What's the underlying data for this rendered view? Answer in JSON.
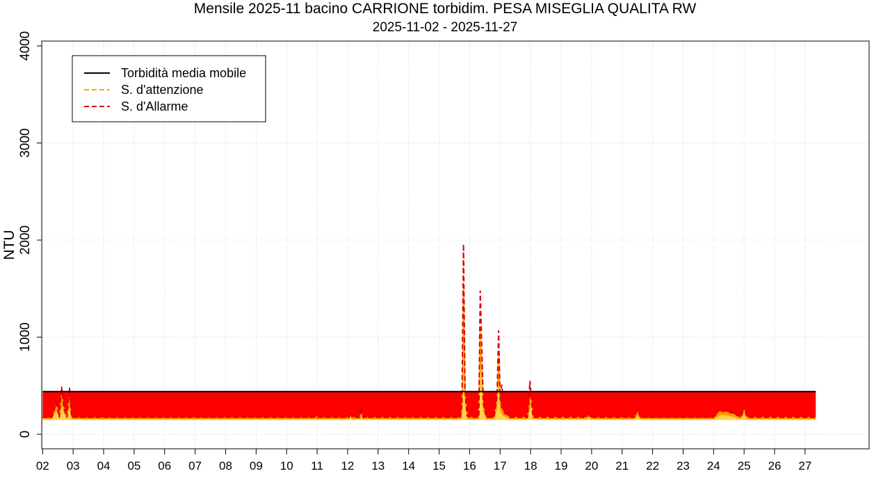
{
  "chart_data": {
    "type": "area",
    "title": "Mensile 2025-11 bacino CARRIONE torbidim. PESA MISEGLIA QUALITA RW",
    "subtitle": "2025-11-02 - 2025-11-27",
    "xlabel": "",
    "ylabel": "NTU",
    "x_ticks": [
      "02",
      "03",
      "04",
      "05",
      "06",
      "07",
      "08",
      "09",
      "10",
      "11",
      "12",
      "13",
      "14",
      "15",
      "16",
      "17",
      "18",
      "19",
      "20",
      "21",
      "22",
      "23",
      "24",
      "25",
      "26",
      "27"
    ],
    "xlim": [
      1.97,
      29.1
    ],
    "ylim": [
      -150,
      4050
    ],
    "y_ticks": [
      0,
      1000,
      2000,
      3000,
      4000
    ],
    "grid": true,
    "legend_position": "top-left",
    "colors": {
      "media_mobile": "#000000",
      "attenzione": "#FFA500",
      "allarme": "#DD0000",
      "fill_red": "#FF0000",
      "fill_orange": "#FF9900",
      "fill_yellow": "#FFD34D"
    },
    "series": [
      {
        "name": "Torbidità media mobile",
        "style": "solid",
        "x": [
          2.0,
          27.35
        ],
        "y": [
          440,
          440
        ]
      },
      {
        "name": "S. d'attenzione",
        "style": "dashed",
        "x": [
          2.0,
          2.3,
          2.45,
          2.55,
          2.62,
          2.7,
          2.8,
          2.88,
          2.95,
          3.1,
          10.9,
          11.0,
          11.1,
          12.05,
          12.1,
          12.15,
          12.4,
          12.45,
          12.5,
          15.7,
          15.75,
          15.8,
          15.85,
          15.92,
          16.0,
          16.3,
          16.35,
          16.4,
          16.45,
          16.55,
          16.8,
          16.9,
          16.95,
          17.0,
          17.1,
          17.3,
          17.9,
          18.0,
          18.08,
          19.85,
          19.9,
          19.95,
          21.4,
          21.5,
          21.6,
          24.0,
          24.2,
          24.5,
          24.9,
          25.0,
          25.1,
          27.35
        ],
        "y": [
          170,
          170,
          300,
          170,
          400,
          250,
          170,
          380,
          170,
          170,
          170,
          180,
          170,
          170,
          200,
          170,
          170,
          220,
          170,
          170,
          250,
          1500,
          400,
          180,
          170,
          170,
          1100,
          800,
          300,
          170,
          170,
          350,
          800,
          300,
          220,
          170,
          170,
          380,
          170,
          170,
          210,
          170,
          170,
          220,
          170,
          170,
          230,
          220,
          170,
          240,
          170,
          170
        ]
      },
      {
        "name": "S. d'Allarme",
        "style": "dashed",
        "x": [
          2.0,
          2.3,
          2.45,
          2.55,
          2.62,
          2.7,
          2.8,
          2.88,
          2.95,
          3.1,
          12.05,
          12.1,
          12.15,
          12.4,
          12.45,
          12.5,
          15.7,
          15.75,
          15.8,
          15.85,
          15.92,
          16.0,
          16.3,
          16.35,
          16.4,
          16.45,
          16.55,
          16.8,
          16.9,
          16.95,
          17.0,
          17.05,
          17.15,
          17.3,
          17.9,
          17.98,
          18.08,
          19.85,
          19.9,
          19.95,
          21.4,
          21.5,
          21.6,
          24.0,
          24.2,
          24.5,
          24.9,
          25.0,
          25.1,
          27.35
        ],
        "y": [
          175,
          175,
          320,
          175,
          490,
          270,
          175,
          480,
          175,
          175,
          175,
          230,
          175,
          175,
          280,
          175,
          175,
          320,
          1960,
          450,
          190,
          175,
          175,
          1480,
          900,
          320,
          175,
          175,
          400,
          1070,
          350,
          510,
          240,
          175,
          175,
          550,
          175,
          175,
          240,
          175,
          175,
          260,
          175,
          175,
          260,
          250,
          175,
          290,
          175,
          175
        ]
      }
    ],
    "legend": [
      {
        "label": "Torbidità media mobile",
        "style": "solid",
        "color": "#000000"
      },
      {
        "label": "S. d'attenzione",
        "style": "dashed",
        "color": "#FFA500"
      },
      {
        "label": "S. d'Allarme",
        "style": "dashed",
        "color": "#DD0000"
      }
    ]
  }
}
